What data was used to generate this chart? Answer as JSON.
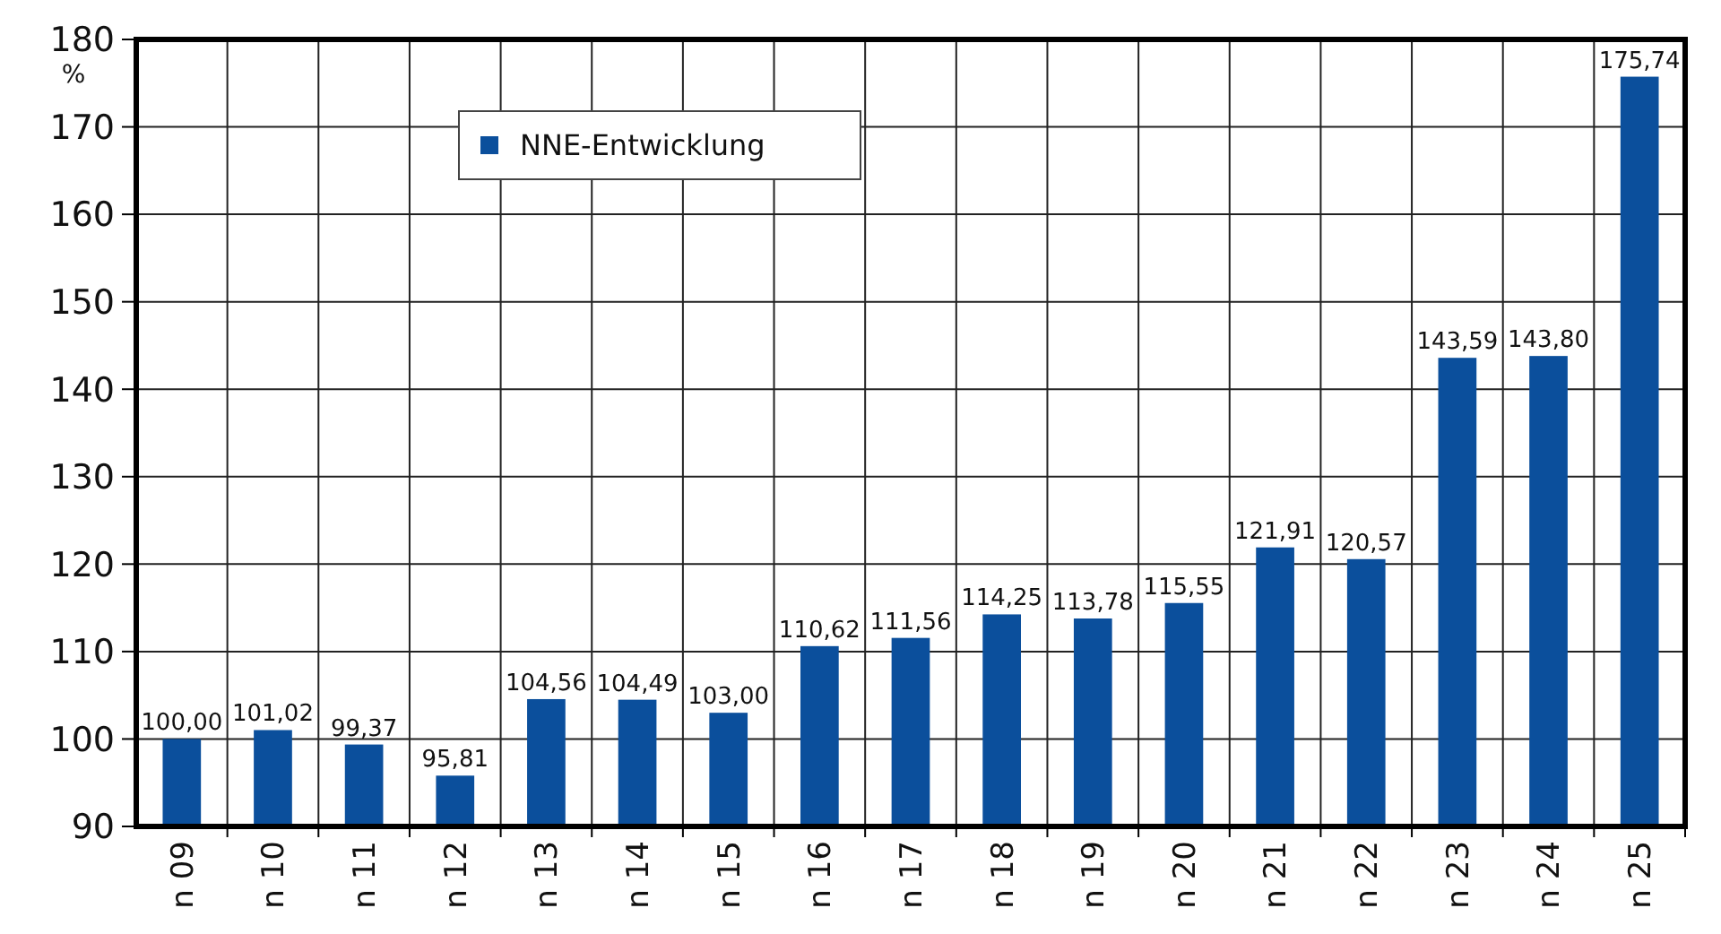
{
  "chart_data": {
    "type": "bar",
    "ylabel": "%",
    "categories": [
      "n 09",
      "n 10",
      "n 11",
      "n 12",
      "n 13",
      "n 14",
      "n 15",
      "n 16",
      "n 17",
      "n 18",
      "n 19",
      "n 20",
      "n 21",
      "n 22",
      "n 23",
      "n 24",
      "n 25"
    ],
    "series": [
      {
        "name": "NNE-Entwicklung",
        "color": "#0b4f9c",
        "values": [
          100.0,
          101.02,
          99.37,
          95.81,
          104.56,
          104.49,
          103.0,
          110.62,
          111.56,
          114.25,
          113.78,
          115.55,
          121.91,
          120.57,
          143.59,
          143.8,
          175.74
        ],
        "value_labels": [
          "100,00",
          "101,02",
          "99,37",
          "95,81",
          "104,56",
          "104,49",
          "103,00",
          "110,62",
          "111,56",
          "114,25",
          "113,78",
          "115,55",
          "121,91",
          "120,57",
          "143,59",
          "143,80",
          "175,74"
        ]
      }
    ],
    "ylim": [
      90,
      180
    ],
    "yticks": [
      90,
      100,
      110,
      120,
      130,
      140,
      150,
      160,
      170,
      180
    ],
    "grid": true,
    "legend": "top left"
  }
}
